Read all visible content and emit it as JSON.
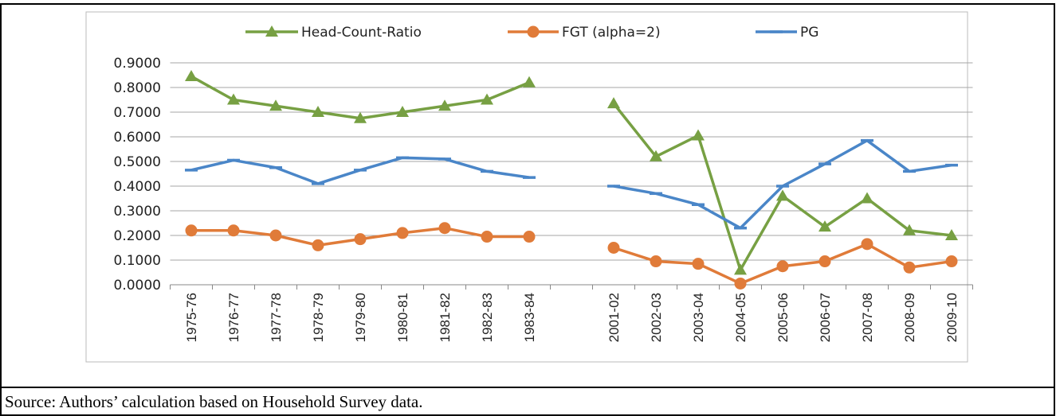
{
  "chart_data": {
    "type": "line",
    "categories": [
      "1975-76",
      "1976-77",
      "1977-78",
      "1978-79",
      "1979-80",
      "1980-81",
      "1981-82",
      "1982-83",
      "1983-84",
      null,
      "2001-02",
      "2002-03",
      "2003-04",
      "2004-05",
      "2005-06",
      "2006-07",
      "2007-08",
      "2008-09",
      "2009-10"
    ],
    "series": [
      {
        "name": "Head-Count-Ratio",
        "color": "#77a043",
        "marker": "triangle",
        "values": [
          0.845,
          0.75,
          0.725,
          0.7,
          0.675,
          0.7,
          0.725,
          0.75,
          0.82,
          null,
          0.735,
          0.52,
          0.605,
          0.06,
          0.36,
          0.235,
          0.35,
          0.22,
          0.2
        ]
      },
      {
        "name": "FGT (alpha=2)",
        "color": "#e07b39",
        "marker": "circle",
        "values": [
          0.22,
          0.22,
          0.2,
          0.16,
          0.185,
          0.21,
          0.23,
          0.195,
          0.195,
          null,
          0.15,
          0.095,
          0.085,
          0.005,
          0.075,
          0.095,
          0.165,
          0.07,
          0.095
        ]
      },
      {
        "name": "PG",
        "color": "#4a86c8",
        "marker": "dash",
        "values": [
          0.465,
          0.505,
          0.475,
          0.41,
          0.465,
          0.515,
          0.51,
          0.46,
          0.435,
          null,
          0.4,
          0.37,
          0.325,
          0.23,
          0.4,
          0.49,
          0.585,
          0.46,
          0.485
        ]
      }
    ],
    "ylim": [
      0,
      0.9
    ],
    "yticks": [
      {
        "value": 0,
        "label": "0.0000"
      },
      {
        "value": 0.1,
        "label": "0.1000"
      },
      {
        "value": 0.2,
        "label": "0.2000"
      },
      {
        "value": 0.3,
        "label": "0.3000"
      },
      {
        "value": 0.4,
        "label": "0.4000"
      },
      {
        "value": 0.5,
        "label": "0.5000"
      },
      {
        "value": 0.6,
        "label": "0.6000"
      },
      {
        "value": 0.7,
        "label": "0.7000"
      },
      {
        "value": 0.8,
        "label": "0.8000"
      },
      {
        "value": 0.9,
        "label": "0.9000"
      }
    ],
    "grid": true,
    "legend": "top"
  },
  "source": "Source: Authors’ calculation based on Household Survey data."
}
